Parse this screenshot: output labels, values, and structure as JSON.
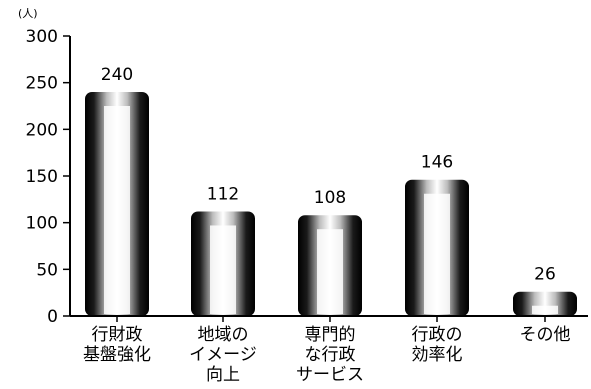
{
  "chart_data": {
    "type": "bar",
    "title": "",
    "xlabel": "",
    "ylabel": "(人)",
    "ylim": [
      0,
      300
    ],
    "yticks": [
      0,
      50,
      100,
      150,
      200,
      250,
      300
    ],
    "grid": false,
    "categories": [
      [
        "行財政",
        "基盤強化"
      ],
      [
        "地域の",
        "イメージ",
        "向上"
      ],
      [
        "専門的",
        "な行政",
        "サービス"
      ],
      [
        "行政の",
        "効率化"
      ],
      [
        "その他"
      ]
    ],
    "values": [
      240,
      112,
      108,
      146,
      26
    ],
    "data_labels": [
      "240",
      "112",
      "108",
      "146",
      "26"
    ],
    "colors": {
      "bar": "#000000",
      "highlight": "#ffffff",
      "axis": "#000000"
    }
  }
}
